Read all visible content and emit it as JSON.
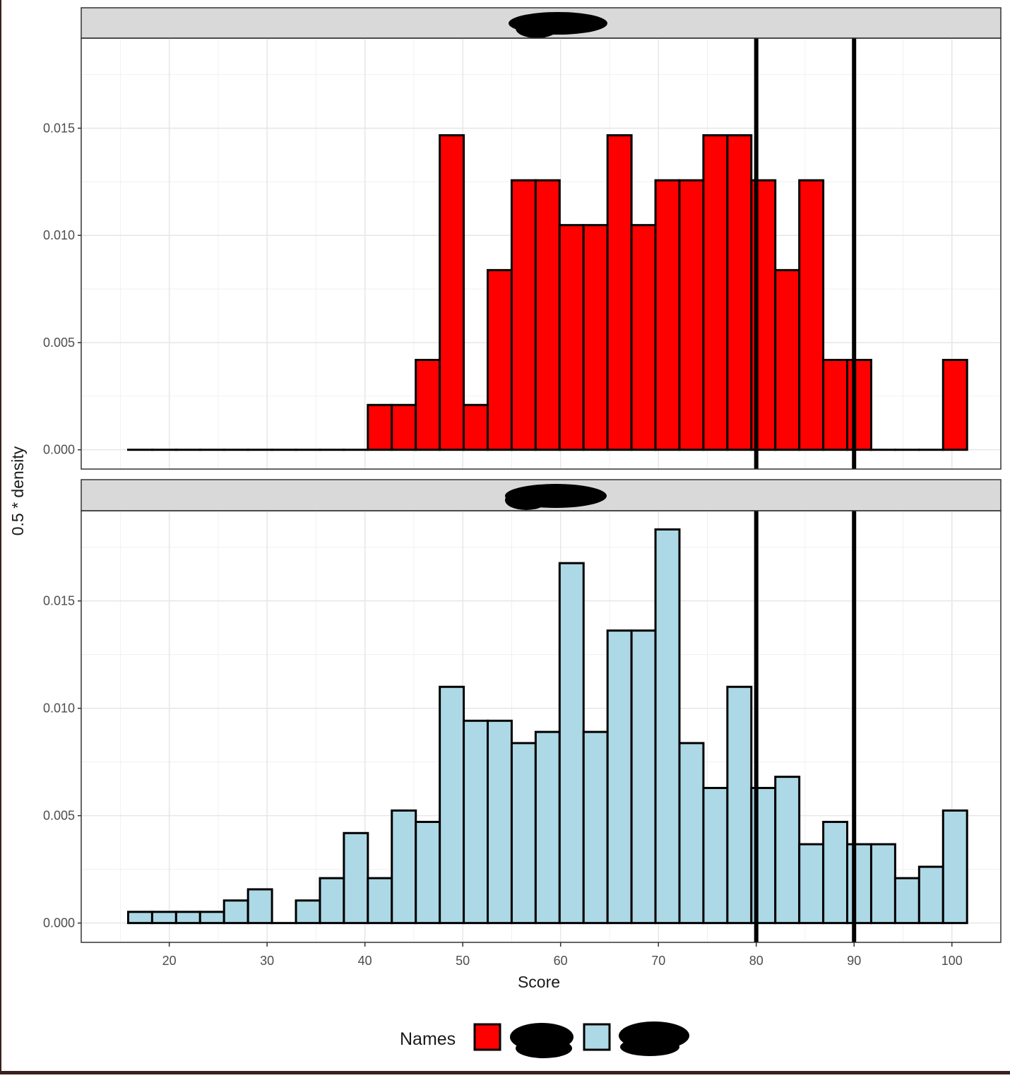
{
  "chart_data": {
    "type": "histogram",
    "xlabel": "Score",
    "ylabel": "0.5 * density",
    "xlim": [
      11,
      105
    ],
    "ylim": [
      -0.0009,
      0.0192
    ],
    "x_ticks": [
      20,
      30,
      40,
      50,
      60,
      70,
      80,
      90,
      100
    ],
    "x_tick_labels": [
      "20",
      "30",
      "40",
      "50",
      "60",
      "70",
      "80",
      "90",
      "100"
    ],
    "y_ticks": [
      0.0,
      0.005,
      0.01,
      0.015
    ],
    "y_tick_labels": [
      "0.000",
      "0.005",
      "0.010",
      "0.015"
    ],
    "vlines": [
      80,
      90
    ],
    "grid": true,
    "bin_width": 2.45,
    "bin_start": 15.8,
    "panels": [
      {
        "strip_label": "[redacted]",
        "fill": "#ff0000",
        "values": [
          0,
          0,
          0,
          0,
          0,
          0,
          0,
          0,
          0,
          0,
          0.00209,
          0.00209,
          0.00419,
          0.01467,
          0.00209,
          0.00838,
          0.01257,
          0.01257,
          0.01048,
          0.01048,
          0.01467,
          0.01048,
          0.01257,
          0.01257,
          0.01467,
          0.01467,
          0.01257,
          0.00838,
          0.01257,
          0.00419,
          0.00419,
          0,
          0,
          0,
          0.00419
        ]
      },
      {
        "strip_label": "[redacted]",
        "fill": "#add8e6",
        "values": [
          0.00052,
          0.00052,
          0.00052,
          0.00052,
          0.00105,
          0.00157,
          0,
          0.00105,
          0.00209,
          0.00419,
          0.00209,
          0.00524,
          0.00471,
          0.011,
          0.00942,
          0.00942,
          0.00838,
          0.0089,
          0.01676,
          0.0089,
          0.01362,
          0.01362,
          0.01833,
          0.00838,
          0.00629,
          0.011,
          0.00629,
          0.00681,
          0.00367,
          0.00471,
          0.00367,
          0.00367,
          0.00209,
          0.00262,
          0.00524
        ]
      }
    ],
    "legend": {
      "title": "Names",
      "position": "bottom",
      "entries": [
        {
          "label": "[redacted]",
          "color": "#ff0000"
        },
        {
          "label": "[redacted]",
          "color": "#add8e6"
        }
      ]
    }
  }
}
